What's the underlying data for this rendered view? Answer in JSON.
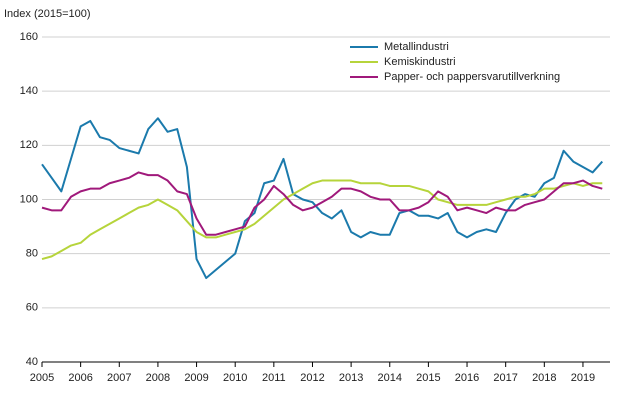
{
  "chart_data": {
    "type": "line",
    "y_label": "Index (2015=100)",
    "x": [
      2005,
      2005.25,
      2005.5,
      2005.75,
      2006,
      2006.25,
      2006.5,
      2006.75,
      2007,
      2007.25,
      2007.5,
      2007.75,
      2008,
      2008.25,
      2008.5,
      2008.75,
      2009,
      2009.25,
      2009.5,
      2009.75,
      2010,
      2010.25,
      2010.5,
      2010.75,
      2011,
      2011.25,
      2011.5,
      2011.75,
      2012,
      2012.25,
      2012.5,
      2012.75,
      2013,
      2013.25,
      2013.5,
      2013.75,
      2014,
      2014.25,
      2014.5,
      2014.75,
      2015,
      2015.25,
      2015.5,
      2015.75,
      2016,
      2016.25,
      2016.5,
      2016.75,
      2017,
      2017.25,
      2017.5,
      2017.75,
      2018,
      2018.25,
      2018.5,
      2018.75,
      2019,
      2019.25,
      2019.5
    ],
    "series": [
      {
        "name": "Metallindustri",
        "color": "#1b7aac",
        "values": [
          113,
          108,
          103,
          115,
          127,
          129,
          123,
          122,
          119,
          118,
          117,
          126,
          130,
          125,
          126,
          112,
          78,
          71,
          74,
          77,
          80,
          92,
          95,
          106,
          107,
          115,
          102,
          100,
          99,
          95,
          93,
          96,
          88,
          86,
          88,
          87,
          87,
          95,
          96,
          94,
          94,
          93,
          95,
          88,
          86,
          88,
          89,
          88,
          95,
          100,
          102,
          101,
          106,
          108,
          118,
          114,
          112,
          110,
          114
        ]
      },
      {
        "name": "Kemiskindustri",
        "color": "#b6d43b",
        "values": [
          78,
          79,
          81,
          83,
          84,
          87,
          89,
          91,
          93,
          95,
          97,
          98,
          100,
          98,
          96,
          92,
          88,
          86,
          86,
          87,
          88,
          89,
          91,
          94,
          97,
          100,
          102,
          104,
          106,
          107,
          107,
          107,
          107,
          106,
          106,
          106,
          105,
          105,
          105,
          104,
          103,
          100,
          99,
          98,
          98,
          98,
          98,
          99,
          100,
          101,
          101,
          102,
          104,
          104,
          105,
          106,
          105,
          106,
          106
        ]
      },
      {
        "name": "Papper- och pappersvarutillverkning",
        "color": "#a0197b",
        "values": [
          97,
          96,
          96,
          101,
          103,
          104,
          104,
          106,
          107,
          108,
          110,
          109,
          109,
          107,
          103,
          102,
          93,
          87,
          87,
          88,
          89,
          90,
          97,
          100,
          105,
          102,
          98,
          96,
          97,
          99,
          101,
          104,
          104,
          103,
          101,
          100,
          100,
          96,
          96,
          97,
          99,
          103,
          101,
          96,
          97,
          96,
          95,
          97,
          96,
          96,
          98,
          99,
          100,
          103,
          106,
          106,
          107,
          105,
          104
        ]
      }
    ],
    "xlim": [
      2005,
      2019.7
    ],
    "xticks": [
      2005,
      2006,
      2007,
      2008,
      2009,
      2010,
      2011,
      2012,
      2013,
      2014,
      2015,
      2016,
      2017,
      2018,
      2019
    ],
    "ylim": [
      40,
      160
    ],
    "yticks": [
      40,
      60,
      80,
      100,
      120,
      140,
      160
    ],
    "grid": true,
    "legend": "top-right"
  }
}
